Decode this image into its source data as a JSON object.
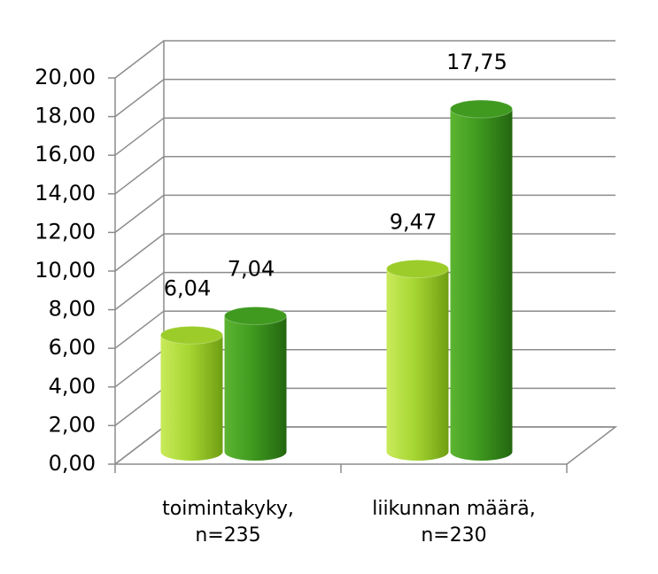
{
  "chart_data": {
    "type": "bar",
    "categories": [
      "toimintakyky,\nn=235",
      "liikunnan määrä,\nn=230"
    ],
    "series": [
      {
        "color": "#9ccc2a",
        "values": [
          6.04,
          9.47
        ],
        "value_labels": [
          "6,04",
          "9,47"
        ]
      },
      {
        "color": "#3f9a1f",
        "values": [
          7.04,
          17.75
        ],
        "value_labels": [
          "7,04",
          "17,75"
        ]
      }
    ],
    "ylim": [
      0,
      20
    ],
    "yticks": [
      {
        "value": 0,
        "label": "0,00"
      },
      {
        "value": 2,
        "label": "2,00"
      },
      {
        "value": 4,
        "label": "4,00"
      },
      {
        "value": 6,
        "label": "6,00"
      },
      {
        "value": 8,
        "label": "8,00"
      },
      {
        "value": 10,
        "label": "10,00"
      },
      {
        "value": 12,
        "label": "12,00"
      },
      {
        "value": 14,
        "label": "14,00"
      },
      {
        "value": 16,
        "label": "16,00"
      },
      {
        "value": 18,
        "label": "18,00"
      },
      {
        "value": 20,
        "label": "20,00"
      }
    ],
    "grid": true
  }
}
